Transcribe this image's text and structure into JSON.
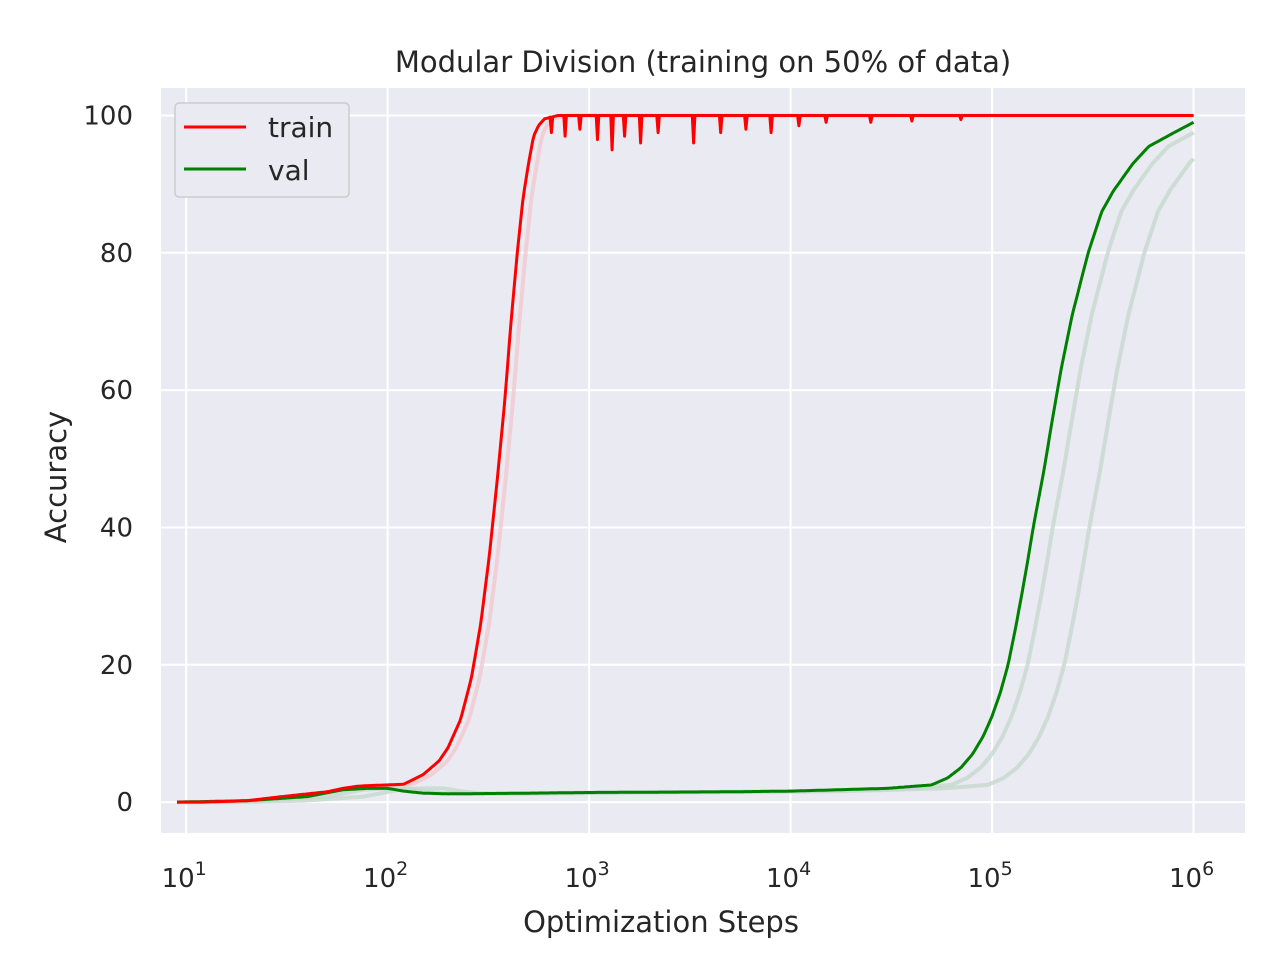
{
  "chart_data": {
    "type": "line",
    "title": "Modular Division (training on 50% of data)",
    "xlabel": "Optimization Steps",
    "ylabel": "Accuracy",
    "xscale": "log",
    "xlim": [
      7.5,
      1800000
    ],
    "ylim": [
      -4.5,
      104
    ],
    "x_ticks": [
      {
        "value": 10,
        "base": "10",
        "exp": "1"
      },
      {
        "value": 100,
        "base": "10",
        "exp": "2"
      },
      {
        "value": 1000,
        "base": "10",
        "exp": "3"
      },
      {
        "value": 10000,
        "base": "10",
        "exp": "4"
      },
      {
        "value": 100000,
        "base": "10",
        "exp": "5"
      },
      {
        "value": 1000000,
        "base": "10",
        "exp": "6"
      }
    ],
    "y_ticks": [
      0,
      20,
      40,
      60,
      80,
      100
    ],
    "grid": true,
    "legend_position": "top-left",
    "series": [
      {
        "name": "train",
        "color": "#ff0000",
        "x": [
          9,
          12,
          20,
          30,
          40,
          50,
          60,
          70,
          80,
          100,
          120,
          150,
          180,
          200,
          230,
          260,
          290,
          320,
          350,
          380,
          410,
          440,
          470,
          500,
          530,
          560,
          600,
          700,
          1000,
          1500,
          2000,
          3000,
          5000,
          10000,
          30000,
          100000,
          1000000
        ],
        "y": [
          0,
          0,
          0.2,
          0.8,
          1.2,
          1.5,
          2.0,
          2.3,
          2.4,
          2.5,
          2.6,
          4.0,
          6.0,
          8.0,
          12.0,
          18.0,
          26.0,
          36.0,
          47.0,
          58.0,
          70.0,
          80.0,
          88.0,
          93.0,
          97.0,
          98.5,
          99.5,
          100,
          100,
          100,
          100,
          100,
          100,
          100,
          100,
          100,
          100
        ],
        "dips": [
          {
            "x": 650,
            "y": 97.5
          },
          {
            "x": 760,
            "y": 97.0
          },
          {
            "x": 900,
            "y": 98.0
          },
          {
            "x": 1100,
            "y": 96.5
          },
          {
            "x": 1300,
            "y": 95.0
          },
          {
            "x": 1500,
            "y": 97.0
          },
          {
            "x": 1800,
            "y": 96.0
          },
          {
            "x": 2200,
            "y": 97.5
          },
          {
            "x": 3300,
            "y": 96.0
          },
          {
            "x": 4500,
            "y": 97.5
          },
          {
            "x": 6000,
            "y": 98.0
          },
          {
            "x": 8000,
            "y": 97.5
          },
          {
            "x": 11000,
            "y": 98.5
          },
          {
            "x": 15000,
            "y": 99.0
          },
          {
            "x": 25000,
            "y": 99.0
          },
          {
            "x": 40000,
            "y": 99.2
          },
          {
            "x": 70000,
            "y": 99.4
          }
        ]
      },
      {
        "name": "val",
        "color": "#008000",
        "x": [
          9,
          20,
          40,
          60,
          80,
          100,
          120,
          150,
          200,
          500,
          1000,
          5000,
          10000,
          30000,
          50000,
          60000,
          70000,
          80000,
          90000,
          100000,
          110000,
          120000,
          130000,
          140000,
          150000,
          160000,
          180000,
          200000,
          220000,
          250000,
          300000,
          350000,
          400000,
          500000,
          600000,
          800000,
          1000000
        ],
        "y": [
          0,
          0.2,
          0.8,
          1.8,
          2.0,
          2.0,
          1.6,
          1.3,
          1.2,
          1.3,
          1.4,
          1.5,
          1.6,
          2.0,
          2.5,
          3.5,
          5.0,
          7.0,
          9.5,
          12.5,
          16.0,
          20.0,
          25.0,
          30.0,
          35.0,
          40.0,
          48.0,
          56.0,
          63.0,
          71.0,
          80.0,
          86.0,
          89.0,
          93.0,
          95.5,
          97.5,
          99.0
        ]
      }
    ],
    "legend": {
      "entries": [
        "train",
        "val"
      ]
    },
    "colors": {
      "background": "#eaeaf2",
      "grid": "#ffffff",
      "train": "#ff0000",
      "val": "#008000",
      "train_shadow": "#f3c8cf",
      "val_shadow": "#c6d8cc"
    }
  }
}
